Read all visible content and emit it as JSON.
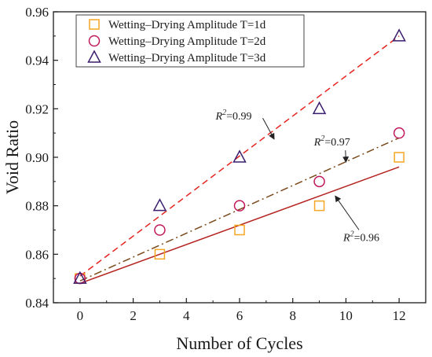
{
  "chart_data": {
    "type": "scatter",
    "title": "",
    "xlabel": "Number of Cycles",
    "ylabel": "Void Ratio",
    "xlim": [
      -1,
      13
    ],
    "ylim": [
      0.84,
      0.96
    ],
    "xticks": [
      0,
      2,
      4,
      6,
      8,
      10,
      12
    ],
    "yticks": [
      0.84,
      0.86,
      0.88,
      0.9,
      0.92,
      0.94,
      0.96
    ],
    "xtick_labels": [
      "0",
      "2",
      "4",
      "6",
      "8",
      "10",
      "12"
    ],
    "ytick_labels": [
      "0.84",
      "0.86",
      "0.88",
      "0.90",
      "0.92",
      "0.94",
      "0.96"
    ],
    "grid": false,
    "legend_position": "top-left",
    "x": [
      0,
      3,
      6,
      9,
      12
    ],
    "series": [
      {
        "name": "Wetting–Drying Amplitude T=1d",
        "marker": "square",
        "color": "#f5a623",
        "values": [
          0.85,
          0.86,
          0.87,
          0.88,
          0.9
        ],
        "fit": {
          "x": [
            0,
            12
          ],
          "y": [
            0.848,
            0.896
          ],
          "style": "solid",
          "color": "#b5241f"
        },
        "r2_label": "=0.96",
        "r2_anchor": {
          "x": 9.9,
          "y": 0.8655
        },
        "r2_arrow_to": {
          "x": 9.6,
          "y": 0.884
        }
      },
      {
        "name": "Wetting–Drying Amplitude T=2d",
        "marker": "circle",
        "color": "#c2185b",
        "values": [
          0.85,
          0.87,
          0.88,
          0.89,
          0.91
        ],
        "fit": {
          "x": [
            0,
            12
          ],
          "y": [
            0.849,
            0.908
          ],
          "style": "dashdot",
          "color": "#7a4a1a"
        },
        "r2_label": "=0.97",
        "r2_anchor": {
          "x": 8.8,
          "y": 0.9048
        },
        "r2_arrow_to": {
          "x": 10.0,
          "y": 0.898
        }
      },
      {
        "name": "Wetting–Drying Amplitude T=3d",
        "marker": "triangle",
        "color": "#3b1f6e",
        "values": [
          0.85,
          0.88,
          0.9,
          0.92,
          0.95
        ],
        "fit": {
          "x": [
            0,
            12
          ],
          "y": [
            0.851,
            0.95
          ],
          "style": "dashed",
          "color": "#e52420"
        },
        "r2_label": "=0.99",
        "r2_anchor": {
          "x": 5.1,
          "y": 0.9155
        },
        "r2_arrow_to": {
          "x": 7.3,
          "y": 0.9075
        }
      }
    ]
  }
}
